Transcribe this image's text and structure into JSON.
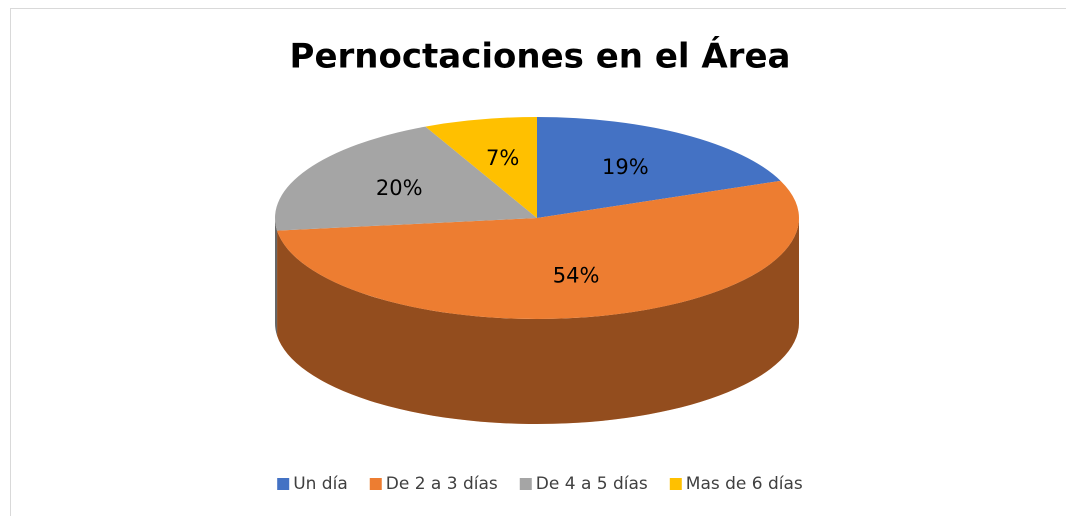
{
  "chart_data": {
    "type": "pie",
    "title": "Pernoctaciones en el Área",
    "categories": [
      "Un día",
      "De 2 a 3 días",
      "De 4 a 5 días",
      "Mas de 6 días"
    ],
    "values": [
      19,
      54,
      20,
      7
    ],
    "value_labels": [
      "19%",
      "54%",
      "20%",
      "7%"
    ],
    "colors": [
      "#4472c4",
      "#ed7d31",
      "#a5a5a5",
      "#ffc000"
    ],
    "legend": "bottom"
  }
}
